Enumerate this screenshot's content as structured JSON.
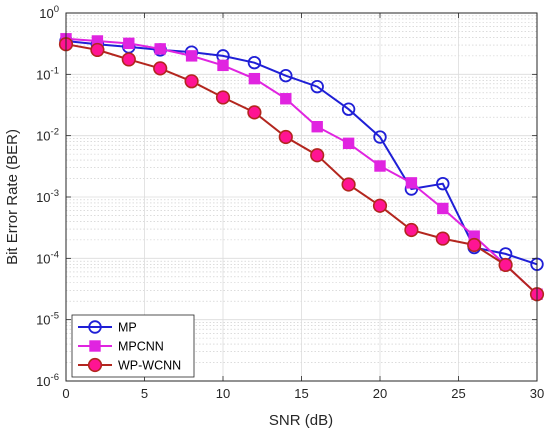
{
  "chart_data": {
    "type": "line",
    "xlabel": "SNR (dB)",
    "ylabel": "Bit Error Rate (BER)",
    "xlim": [
      0,
      30
    ],
    "ylim": [
      1e-06,
      1
    ],
    "yscale": "log",
    "grid": true,
    "legend_position": "bottom-left",
    "x_ticks": [
      0,
      5,
      10,
      15,
      20,
      25,
      30
    ],
    "y_ticks": [
      {
        "value": 1e-06,
        "base": "10",
        "exp": "-6"
      },
      {
        "value": 1e-05,
        "base": "10",
        "exp": "-5"
      },
      {
        "value": 0.0001,
        "base": "10",
        "exp": "-4"
      },
      {
        "value": 0.001,
        "base": "10",
        "exp": "-3"
      },
      {
        "value": 0.01,
        "base": "10",
        "exp": "-2"
      },
      {
        "value": 0.1,
        "base": "10",
        "exp": "-1"
      },
      {
        "value": 1,
        "base": "10",
        "exp": "0"
      }
    ],
    "series": [
      {
        "name": "MP",
        "color": "#1f1fd6",
        "marker": "circle-open",
        "x": [
          0,
          2,
          4,
          6,
          8,
          10,
          12,
          14,
          16,
          18,
          20,
          22,
          24,
          26,
          28,
          30
        ],
        "y": [
          0.35,
          0.31,
          0.28,
          0.25,
          0.23,
          0.2,
          0.155,
          0.095,
          0.063,
          0.027,
          0.0095,
          0.00135,
          0.00165,
          0.00015,
          0.000118,
          8e-05
        ]
      },
      {
        "name": "MPCNN",
        "color": "#e024e0",
        "marker": "square-filled",
        "x": [
          0,
          2,
          4,
          6,
          8,
          10,
          12,
          14,
          16,
          18,
          20,
          22,
          24,
          26,
          28,
          30
        ],
        "y": [
          0.38,
          0.35,
          0.32,
          0.26,
          0.2,
          0.14,
          0.085,
          0.04,
          0.014,
          0.0075,
          0.0032,
          0.0017,
          0.00065,
          0.00023,
          7.8e-05,
          2.6e-05
        ]
      },
      {
        "name": "WP-WCNN",
        "color": "#b3261e",
        "marker": "circle-filled",
        "marker_fill": "#ff1493",
        "x": [
          0,
          2,
          4,
          6,
          8,
          10,
          12,
          14,
          16,
          18,
          20,
          22,
          24,
          26,
          28,
          30
        ],
        "y": [
          0.31,
          0.25,
          0.175,
          0.125,
          0.077,
          0.042,
          0.024,
          0.0095,
          0.0048,
          0.0016,
          0.00072,
          0.00029,
          0.00021,
          0.000165,
          7.8e-05,
          2.6e-05
        ]
      }
    ]
  }
}
